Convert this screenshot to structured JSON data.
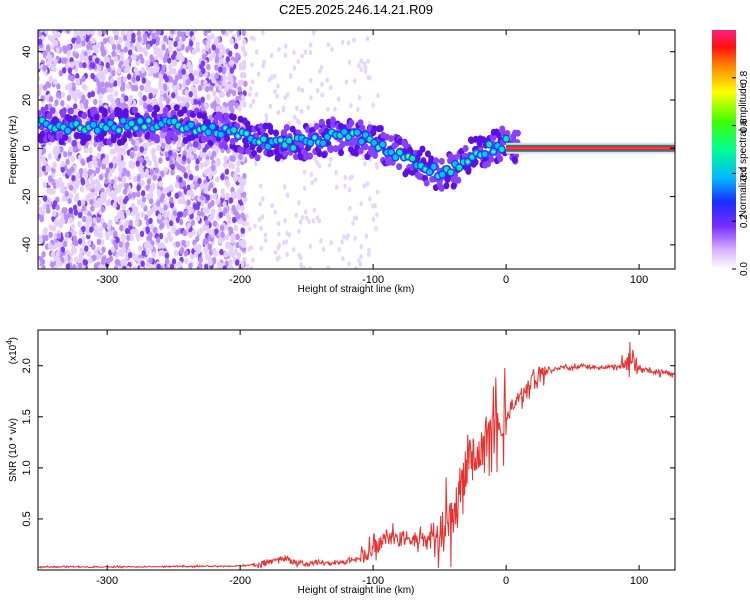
{
  "title": "C2E5.2025.246.14.21.R09",
  "chart_data": [
    {
      "type": "heatmap",
      "xlabel": "Height of straight line (km)",
      "ylabel": "Frequency (Hz)",
      "xlim": [
        -352,
        127
      ],
      "ylim": [
        -50,
        49
      ],
      "xticks": [
        -300,
        -200,
        -100,
        0,
        100
      ],
      "xtick_labels": [
        "-300",
        "-200",
        "-100",
        "0",
        "100"
      ],
      "yticks": [
        -40,
        -20,
        0,
        20,
        40
      ],
      "ytick_labels": [
        "-40",
        "-20",
        "0",
        "20",
        "40"
      ],
      "colorbar": {
        "label": "Normalized spectral amplitude",
        "range": [
          0,
          1
        ],
        "ticks": [
          0.0,
          0.2,
          0.4,
          0.6,
          0.8
        ],
        "tick_labels": [
          "0.0",
          "0.2",
          "0.4",
          "0.6",
          "0.8"
        ]
      },
      "ridge": {
        "x": [
          -350,
          -325,
          -300,
          -275,
          -250,
          -225,
          -205,
          -190,
          -175,
          -160,
          -145,
          -130,
          -115,
          -100,
          -90,
          -80,
          -70,
          -60,
          -50,
          -40,
          -30,
          -20,
          -10,
          0,
          10,
          50,
          100,
          127
        ],
        "y": [
          10,
          9,
          9,
          10,
          10,
          8,
          7,
          3,
          2,
          2,
          3,
          5,
          5,
          3,
          0,
          -3,
          -6,
          -8,
          -10,
          -9,
          -4,
          -1,
          0,
          2,
          1,
          0,
          0,
          0
        ]
      }
    },
    {
      "type": "line",
      "xlabel": "Height of straight line (km)",
      "ylabel": "SNR (10 * v/v)",
      "y_scale_label": "(x10",
      "y_scale_exponent": "4",
      "xlim": [
        -352,
        127
      ],
      "ylim": [
        0,
        2.35
      ],
      "xticks": [
        -300,
        -200,
        -100,
        0,
        100
      ],
      "xtick_labels": [
        "-300",
        "-200",
        "-100",
        "0",
        "100"
      ],
      "yticks": [
        0.5,
        1.0,
        1.5,
        2.0
      ],
      "ytick_labels": [
        "0.5",
        "1.0",
        "1.5",
        "2.0"
      ],
      "series": [
        {
          "name": "SNR",
          "color": "#e8312f",
          "x": [
            -352,
            -300,
            -250,
            -200,
            -185,
            -170,
            -160,
            -150,
            -140,
            -130,
            -120,
            -110,
            -100,
            -90,
            -80,
            -70,
            -60,
            -50,
            -45,
            -40,
            -35,
            -30,
            -25,
            -20,
            -15,
            -10,
            -5,
            0,
            10,
            20,
            30,
            40,
            60,
            80,
            90,
            95,
            100,
            110,
            120,
            127
          ],
          "y": [
            0.03,
            0.03,
            0.035,
            0.04,
            0.06,
            0.12,
            0.08,
            0.06,
            0.07,
            0.06,
            0.08,
            0.12,
            0.2,
            0.3,
            0.32,
            0.3,
            0.3,
            0.32,
            0.42,
            0.5,
            0.7,
            1.0,
            1.2,
            1.1,
            1.3,
            1.4,
            1.45,
            1.52,
            1.7,
            1.85,
            1.95,
            1.98,
            1.99,
            1.99,
            2.0,
            2.1,
            1.96,
            1.95,
            1.93,
            1.92
          ]
        }
      ]
    }
  ],
  "colors": {
    "line": "#e8312f",
    "scatter": "#6a1fe0",
    "frame": "#000000"
  }
}
